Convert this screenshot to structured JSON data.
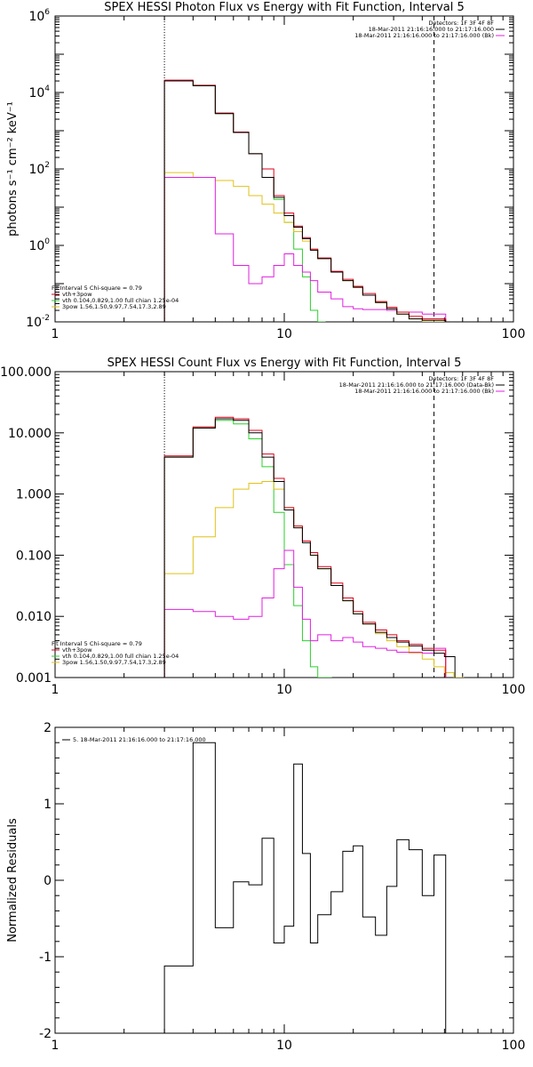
{
  "colors": {
    "black": "#000000",
    "red": "#e0001a",
    "green": "#2bd02b",
    "yellow": "#e0c21a",
    "magenta": "#e020e0"
  },
  "chart_data": [
    {
      "type": "line",
      "title": "SPEX HESSI Photon Flux vs Energy with Fit Function, Interval 5",
      "ylabel": "photons s⁻¹ cm⁻² keV⁻¹",
      "xscale": "log",
      "yscale": "log",
      "xlim": [
        1,
        100
      ],
      "ylim": [
        0.01,
        1000000
      ],
      "xticks": [
        "1",
        "10",
        "100"
      ],
      "yticks": [
        {
          "v": 0.01,
          "m": "10",
          "e": "-2"
        },
        {
          "v": 1,
          "m": "10",
          "e": "0"
        },
        {
          "v": 100,
          "m": "10",
          "e": "2"
        },
        {
          "v": 10000,
          "m": "10",
          "e": "4"
        },
        {
          "v": 1000000,
          "m": "10",
          "e": "6"
        }
      ],
      "vlines": [
        {
          "x": 3.0,
          "style": "dotted"
        },
        {
          "x": 45,
          "style": "dashed"
        }
      ],
      "legend_right": [
        "Detectors: 1F 3F 4F 8F",
        "18-Mar-2011 21:16:16.000 to 21:17:16.000",
        "18-Mar-2011 21:16:16.000 to 21:17:16.000 (Bk)"
      ],
      "legend_left": [
        "Fit Interval 5   Chi-square = 0.79",
        "vth+3pow",
        "vth 0.104,0.829,1.00  full chian 1.25e-04",
        "3pow 1.56,1.50,9.97,7.54,17.3,2.89"
      ],
      "series": [
        {
          "color": "black",
          "x": [
            3,
            4,
            5,
            6,
            7,
            8,
            9,
            10,
            11,
            12,
            13,
            14,
            16,
            18,
            20,
            22,
            25,
            28,
            31,
            35,
            40,
            45
          ],
          "y": [
            20000,
            15000,
            2800,
            900,
            250,
            60,
            18,
            6,
            3,
            1.5,
            0.75,
            0.45,
            0.2,
            0.12,
            0.08,
            0.05,
            0.032,
            0.022,
            0.016,
            0.012,
            0.011,
            0.011
          ]
        },
        {
          "color": "red",
          "x": [
            3,
            4,
            5,
            6,
            7,
            8,
            9,
            10,
            11,
            12,
            13,
            14,
            16,
            18,
            20,
            22,
            25,
            28,
            31,
            35,
            40,
            45
          ],
          "y": [
            21000,
            15500,
            2900,
            920,
            250,
            100,
            20,
            7,
            3.2,
            1.6,
            0.8,
            0.47,
            0.21,
            0.13,
            0.085,
            0.055,
            0.034,
            0.024,
            0.018,
            0.014,
            0.012,
            0.012
          ]
        },
        {
          "color": "green",
          "x": [
            3,
            4,
            5,
            6,
            7,
            8,
            9,
            10,
            11,
            12,
            13,
            14
          ],
          "y": [
            20000,
            15000,
            2800,
            900,
            250,
            60,
            16,
            4,
            0.8,
            0.15,
            0.02,
            0.005
          ]
        },
        {
          "color": "yellow",
          "x": [
            3,
            4,
            5,
            6,
            7,
            8,
            9,
            10,
            11,
            12,
            13,
            14,
            16,
            18,
            20,
            22,
            25,
            28,
            31,
            35,
            40,
            45
          ],
          "y": [
            80,
            60,
            50,
            35,
            20,
            12,
            7,
            4,
            2.3,
            1.3,
            0.75,
            0.45,
            0.2,
            0.12,
            0.08,
            0.05,
            0.032,
            0.022,
            0.016,
            0.012,
            0.009,
            0.007
          ]
        },
        {
          "color": "magenta",
          "x": [
            3,
            4,
            5,
            6,
            7,
            8,
            9,
            10,
            11,
            12,
            13,
            14,
            16,
            18,
            20,
            22,
            25,
            28,
            31,
            35,
            40,
            45
          ],
          "y": [
            60,
            60,
            2,
            0.3,
            0.1,
            0.15,
            0.3,
            0.6,
            0.3,
            0.2,
            0.12,
            0.06,
            0.04,
            0.025,
            0.022,
            0.021,
            0.021,
            0.02,
            0.018,
            0.018,
            0.016,
            0.016
          ]
        }
      ]
    },
    {
      "type": "line",
      "title": "SPEX HESSI Count Flux vs Energy with Fit Function, Interval 5",
      "ylabel": "",
      "xscale": "log",
      "yscale": "log",
      "xlim": [
        1,
        100
      ],
      "ylim": [
        0.001,
        100
      ],
      "xticks": [
        "1",
        "10",
        "100"
      ],
      "yticks": [
        {
          "v": 0.001,
          "t": "0.001"
        },
        {
          "v": 0.01,
          "t": "0.010"
        },
        {
          "v": 0.1,
          "t": "0.100"
        },
        {
          "v": 1,
          "t": "1.000"
        },
        {
          "v": 10,
          "t": "10.000"
        },
        {
          "v": 100,
          "t": "100.000"
        }
      ],
      "vlines": [
        {
          "x": 3.0,
          "style": "dotted"
        },
        {
          "x": 45,
          "style": "dashed"
        }
      ],
      "legend_right": [
        "Detectors: 1F 3F 4F 8F",
        "18-Mar-2011 21:16:16.000 to 21:17:16.000 (Data-Bk)",
        "18-Mar-2011 21:16:16.000 to 21:17:16.000 (Bk)"
      ],
      "legend_left": [
        "Fit Interval 5   Chi-square = 0.79",
        "vth+3pow",
        "vth 0.104,0.829,1.00  full chian 1.25e-04",
        "3pow 1.56,1.50,9.97,7.54,17.3,2.89"
      ],
      "series": [
        {
          "color": "black",
          "x": [
            3,
            4,
            5,
            6,
            7,
            8,
            9,
            10,
            11,
            12,
            13,
            14,
            16,
            18,
            20,
            22,
            25,
            28,
            31,
            35,
            40,
            45,
            50
          ],
          "y": [
            4,
            12,
            17,
            16,
            10,
            4,
            1.6,
            0.55,
            0.28,
            0.16,
            0.1,
            0.06,
            0.032,
            0.018,
            0.011,
            0.0075,
            0.0055,
            0.0045,
            0.0038,
            0.0033,
            0.0028,
            0.0025,
            0.0022
          ]
        },
        {
          "color": "red",
          "x": [
            3,
            4,
            5,
            6,
            7,
            8,
            9,
            10,
            11,
            12,
            13,
            14,
            16,
            18,
            20,
            22,
            25,
            28,
            31,
            35,
            40,
            45
          ],
          "y": [
            4.2,
            12.5,
            18,
            17,
            11,
            4.5,
            1.8,
            0.6,
            0.3,
            0.17,
            0.11,
            0.065,
            0.035,
            0.02,
            0.012,
            0.008,
            0.006,
            0.005,
            0.004,
            0.0035,
            0.003,
            0.0028
          ]
        },
        {
          "color": "green",
          "x": [
            3,
            4,
            5,
            6,
            7,
            8,
            9,
            10,
            11,
            12,
            13,
            14,
            15
          ],
          "y": [
            4,
            12,
            16,
            14,
            8,
            2.8,
            0.5,
            0.07,
            0.015,
            0.004,
            0.0015,
            0.0008,
            0.0005
          ]
        },
        {
          "color": "yellow",
          "x": [
            3,
            4,
            5,
            6,
            7,
            8,
            9,
            10,
            11,
            12,
            13,
            14,
            16,
            18,
            20,
            22,
            25,
            28,
            31,
            35,
            40,
            45,
            50,
            55
          ],
          "y": [
            0.05,
            0.2,
            0.6,
            1.2,
            1.5,
            1.6,
            1.2,
            0.6,
            0.3,
            0.17,
            0.1,
            0.06,
            0.032,
            0.018,
            0.011,
            0.0075,
            0.0052,
            0.004,
            0.0032,
            0.0025,
            0.002,
            0.0015,
            0.0012,
            0.001
          ]
        },
        {
          "color": "magenta",
          "x": [
            3,
            4,
            5,
            6,
            7,
            8,
            9,
            10,
            11,
            12,
            13,
            14,
            16,
            18,
            20,
            22,
            25,
            28,
            31,
            35,
            40,
            45
          ],
          "y": [
            0.013,
            0.012,
            0.01,
            0.009,
            0.01,
            0.02,
            0.06,
            0.12,
            0.03,
            0.009,
            0.004,
            0.005,
            0.004,
            0.0045,
            0.0038,
            0.0032,
            0.003,
            0.0028,
            0.0026,
            0.0026,
            0.0025,
            0.003
          ]
        }
      ]
    },
    {
      "type": "line",
      "title": "",
      "ylabel": "Normalized Residuals",
      "xscale": "log",
      "yscale": "linear",
      "xlim": [
        1,
        100
      ],
      "ylim": [
        -2,
        2
      ],
      "xticks": [
        "1",
        "10",
        "100"
      ],
      "yticks": [
        {
          "v": -2,
          "t": "-2"
        },
        {
          "v": -1,
          "t": "-1"
        },
        {
          "v": 0,
          "t": "0"
        },
        {
          "v": 1,
          "t": "1"
        },
        {
          "v": 2,
          "t": "2"
        }
      ],
      "legend_left": [
        "5. 18-Mar-2011 21:16:16.000 to 21:17:16.000"
      ],
      "series": [
        {
          "color": "black",
          "x": [
            3,
            4,
            5,
            6,
            7,
            8,
            9,
            10,
            11,
            12,
            13,
            14,
            16,
            18,
            20,
            22,
            25,
            28,
            31,
            35,
            40,
            45
          ],
          "y": [
            -1.12,
            1.8,
            -0.62,
            -0.02,
            -0.06,
            0.55,
            -0.82,
            -0.6,
            1.52,
            0.35,
            -0.82,
            -0.45,
            -0.15,
            0.38,
            0.45,
            -0.48,
            -0.72,
            -0.08,
            0.53,
            0.4,
            -0.2,
            0.33
          ]
        }
      ]
    }
  ]
}
